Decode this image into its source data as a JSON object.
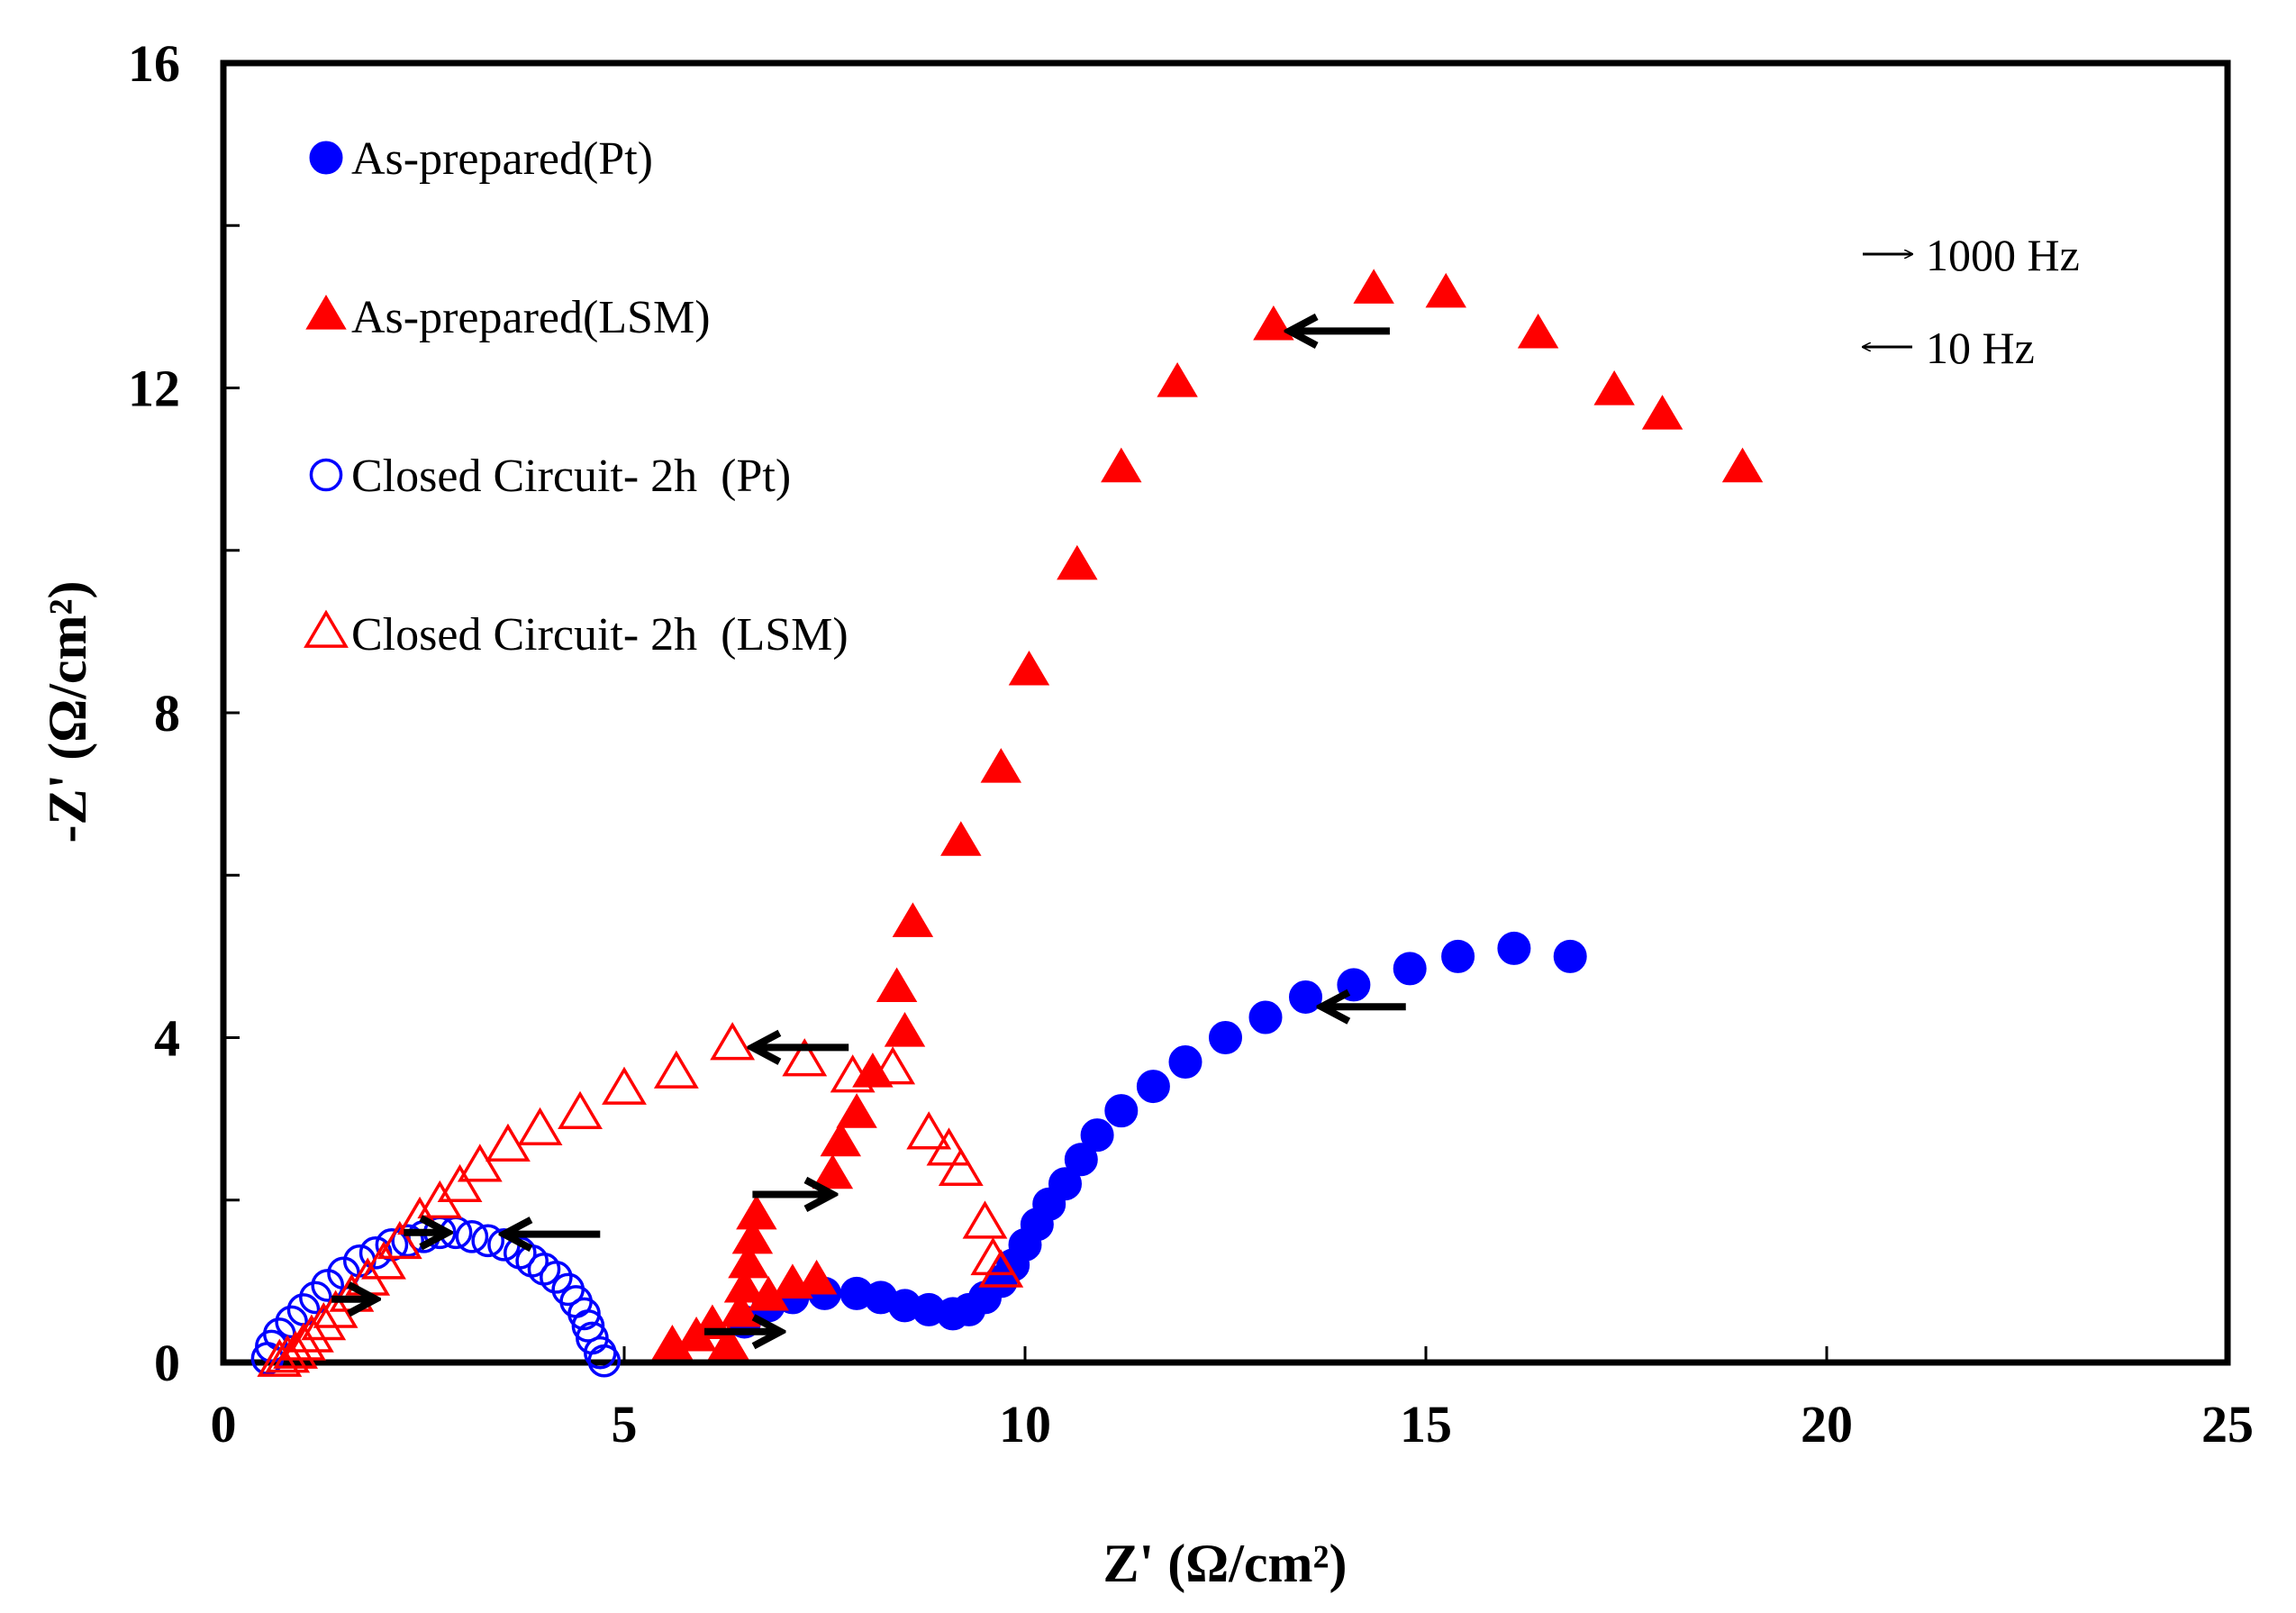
{
  "chart_data": {
    "type": "scatter",
    "title": "",
    "xlabel": "Z' (Ω/cm²)",
    "ylabel": "-Z' (Ω/cm²)",
    "xlim": [
      0,
      25
    ],
    "ylim": [
      0,
      16
    ],
    "x_ticks": [
      "0",
      "5",
      "10",
      "15",
      "20",
      "25"
    ],
    "y_ticks": [
      "0",
      "4",
      "8",
      "12",
      "16"
    ],
    "grid": false,
    "legend_position": "top-left",
    "colors": {
      "pt": "#0000ff",
      "lsm": "#ff0000"
    },
    "frequency_legend": [
      {
        "label": "1000 Hz",
        "direction": "right"
      },
      {
        "label": "10 Hz",
        "direction": "left"
      }
    ],
    "series": [
      {
        "name": "As-prepared(Pt)",
        "marker": "circle-filled",
        "color": "#0000ff",
        "points": [
          [
            6.5,
            0.5
          ],
          [
            6.8,
            0.7
          ],
          [
            7.1,
            0.8
          ],
          [
            7.5,
            0.85
          ],
          [
            7.9,
            0.85
          ],
          [
            8.2,
            0.8
          ],
          [
            8.5,
            0.7
          ],
          [
            8.8,
            0.65
          ],
          [
            9.1,
            0.6
          ],
          [
            9.3,
            0.65
          ],
          [
            9.5,
            0.8
          ],
          [
            9.7,
            1.0
          ],
          [
            9.85,
            1.2
          ],
          [
            10.0,
            1.45
          ],
          [
            10.15,
            1.7
          ],
          [
            10.3,
            1.95
          ],
          [
            10.5,
            2.2
          ],
          [
            10.7,
            2.5
          ],
          [
            10.9,
            2.8
          ],
          [
            11.2,
            3.1
          ],
          [
            11.6,
            3.4
          ],
          [
            12.0,
            3.7
          ],
          [
            12.5,
            4.0
          ],
          [
            13.0,
            4.25
          ],
          [
            13.5,
            4.5
          ],
          [
            14.1,
            4.65
          ],
          [
            14.8,
            4.85
          ],
          [
            15.4,
            5.0
          ],
          [
            16.1,
            5.1
          ],
          [
            16.8,
            5.0
          ]
        ]
      },
      {
        "name": "As-prepared(LSM)",
        "marker": "triangle-filled",
        "color": "#ff0000",
        "points": [
          [
            5.6,
            0.2
          ],
          [
            5.9,
            0.3
          ],
          [
            6.1,
            0.45
          ],
          [
            6.3,
            0.2
          ],
          [
            6.45,
            0.6
          ],
          [
            6.5,
            0.9
          ],
          [
            6.55,
            1.2
          ],
          [
            6.6,
            1.5
          ],
          [
            6.65,
            1.8
          ],
          [
            6.8,
            0.8
          ],
          [
            7.1,
            0.95
          ],
          [
            7.4,
            1.0
          ],
          [
            7.6,
            2.3
          ],
          [
            7.7,
            2.7
          ],
          [
            7.9,
            3.05
          ],
          [
            8.1,
            3.55
          ],
          [
            8.5,
            4.05
          ],
          [
            8.4,
            4.6
          ],
          [
            8.6,
            5.4
          ],
          [
            9.2,
            6.4
          ],
          [
            9.7,
            7.3
          ],
          [
            10.05,
            8.5
          ],
          [
            10.65,
            9.8
          ],
          [
            11.2,
            11.0
          ],
          [
            11.9,
            12.05
          ],
          [
            13.1,
            12.75
          ],
          [
            14.35,
            13.2
          ],
          [
            15.25,
            13.15
          ],
          [
            16.4,
            12.65
          ],
          [
            17.35,
            11.95
          ],
          [
            17.95,
            11.65
          ],
          [
            18.95,
            11.0
          ]
        ]
      },
      {
        "name": "Closed Circuit- 2h  (Pt)",
        "marker": "circle-open",
        "color": "#0000ff",
        "points": [
          [
            0.55,
            0.05
          ],
          [
            0.6,
            0.2
          ],
          [
            0.7,
            0.35
          ],
          [
            0.85,
            0.5
          ],
          [
            1.0,
            0.65
          ],
          [
            1.15,
            0.8
          ],
          [
            1.3,
            0.95
          ],
          [
            1.5,
            1.1
          ],
          [
            1.7,
            1.25
          ],
          [
            1.9,
            1.35
          ],
          [
            2.1,
            1.45
          ],
          [
            2.3,
            1.5
          ],
          [
            2.5,
            1.55
          ],
          [
            2.7,
            1.6
          ],
          [
            2.9,
            1.6
          ],
          [
            3.1,
            1.55
          ],
          [
            3.3,
            1.5
          ],
          [
            3.5,
            1.45
          ],
          [
            3.7,
            1.35
          ],
          [
            3.85,
            1.25
          ],
          [
            4.0,
            1.15
          ],
          [
            4.15,
            1.05
          ],
          [
            4.3,
            0.9
          ],
          [
            4.4,
            0.75
          ],
          [
            4.5,
            0.6
          ],
          [
            4.55,
            0.45
          ],
          [
            4.6,
            0.3
          ],
          [
            4.7,
            0.12
          ],
          [
            4.75,
            0.02
          ]
        ]
      },
      {
        "name": "Closed Circuit- 2h  (LSM)",
        "marker": "triangle-open",
        "color": "#ff0000",
        "points": [
          [
            0.7,
            0.0
          ],
          [
            0.8,
            0.05
          ],
          [
            0.9,
            0.1
          ],
          [
            1.0,
            0.2
          ],
          [
            1.1,
            0.3
          ],
          [
            1.25,
            0.45
          ],
          [
            1.4,
            0.6
          ],
          [
            1.6,
            0.8
          ],
          [
            1.8,
            1.0
          ],
          [
            2.0,
            1.2
          ],
          [
            2.2,
            1.45
          ],
          [
            2.45,
            1.75
          ],
          [
            2.7,
            1.95
          ],
          [
            2.95,
            2.15
          ],
          [
            3.2,
            2.4
          ],
          [
            3.55,
            2.65
          ],
          [
            3.95,
            2.85
          ],
          [
            4.45,
            3.05
          ],
          [
            5.0,
            3.35
          ],
          [
            5.65,
            3.55
          ],
          [
            6.35,
            3.9
          ],
          [
            7.25,
            3.7
          ],
          [
            7.85,
            3.5
          ],
          [
            8.35,
            3.6
          ],
          [
            8.8,
            2.8
          ],
          [
            9.05,
            2.6
          ],
          [
            9.2,
            2.35
          ],
          [
            9.5,
            1.7
          ],
          [
            9.6,
            1.25
          ],
          [
            9.7,
            1.1
          ]
        ]
      }
    ]
  }
}
